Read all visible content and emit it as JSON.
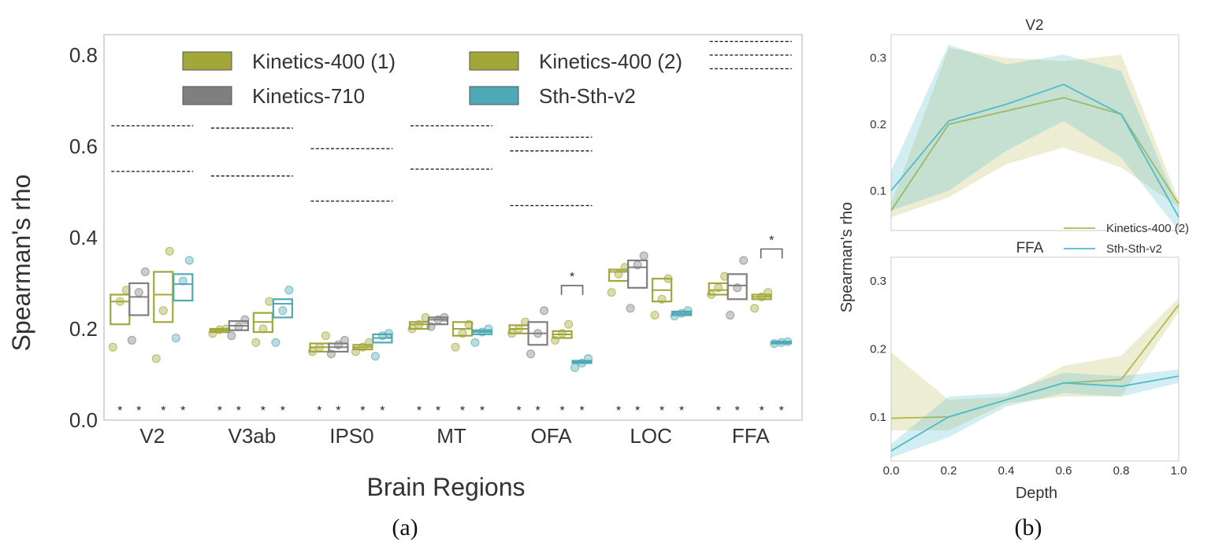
{
  "figure_a": {
    "caption": "(a)",
    "chart_data": {
      "type": "box",
      "xlabel": "Brain Regions",
      "ylabel": "Spearman's rho",
      "ylim": [
        0.0,
        0.84
      ],
      "yticks": [
        "0.0",
        "0.2",
        "0.4",
        "0.6",
        "0.8"
      ],
      "categories": [
        "V2",
        "V3ab",
        "IPS0",
        "MT",
        "OFA",
        "LOC",
        "FFA"
      ],
      "legend_placement": "top",
      "series": [
        {
          "name": "Kinetics-400 (1)",
          "color": "#a3a73a",
          "boxes": [
            {
              "q1": 0.21,
              "median": 0.26,
              "q3": 0.275,
              "points": [
                0.16,
                0.26,
                0.285
              ]
            },
            {
              "q1": 0.193,
              "median": 0.197,
              "q3": 0.2,
              "points": [
                0.19,
                0.198,
                0.2
              ]
            },
            {
              "q1": 0.15,
              "median": 0.16,
              "q3": 0.168,
              "points": [
                0.15,
                0.16,
                0.185
              ]
            },
            {
              "q1": 0.2,
              "median": 0.21,
              "q3": 0.215,
              "points": [
                0.2,
                0.21,
                0.225
              ]
            },
            {
              "q1": 0.19,
              "median": 0.2,
              "q3": 0.208,
              "points": [
                0.19,
                0.2,
                0.215
              ]
            },
            {
              "q1": 0.305,
              "median": 0.325,
              "q3": 0.33,
              "points": [
                0.28,
                0.32,
                0.335
              ]
            },
            {
              "q1": 0.275,
              "median": 0.285,
              "q3": 0.3,
              "points": [
                0.275,
                0.29,
                0.315
              ]
            }
          ]
        },
        {
          "name": "Kinetics-710",
          "color": "#7f7f7f",
          "boxes": [
            {
              "q1": 0.23,
              "median": 0.27,
              "q3": 0.3,
              "points": [
                0.175,
                0.28,
                0.325
              ]
            },
            {
              "q1": 0.197,
              "median": 0.207,
              "q3": 0.217,
              "points": [
                0.185,
                0.205,
                0.22
              ]
            },
            {
              "q1": 0.15,
              "median": 0.16,
              "q3": 0.168,
              "points": [
                0.145,
                0.165,
                0.175
              ]
            },
            {
              "q1": 0.21,
              "median": 0.22,
              "q3": 0.225,
              "points": [
                0.205,
                0.22,
                0.225
              ]
            },
            {
              "q1": 0.165,
              "median": 0.19,
              "q3": 0.215,
              "points": [
                0.145,
                0.19,
                0.24
              ]
            },
            {
              "q1": 0.29,
              "median": 0.335,
              "q3": 0.35,
              "points": [
                0.245,
                0.34,
                0.36
              ]
            },
            {
              "q1": 0.265,
              "median": 0.295,
              "q3": 0.32,
              "points": [
                0.23,
                0.29,
                0.35
              ]
            }
          ]
        },
        {
          "name": "Kinetics-400 (2)",
          "color": "#a3a73a",
          "boxes": [
            {
              "q1": 0.215,
              "median": 0.275,
              "q3": 0.325,
              "points": [
                0.135,
                0.24,
                0.37
              ]
            },
            {
              "q1": 0.193,
              "median": 0.215,
              "q3": 0.235,
              "points": [
                0.17,
                0.2,
                0.26
              ]
            },
            {
              "q1": 0.155,
              "median": 0.16,
              "q3": 0.165,
              "points": [
                0.15,
                0.16,
                0.17
              ]
            },
            {
              "q1": 0.185,
              "median": 0.2,
              "q3": 0.215,
              "points": [
                0.16,
                0.19,
                0.21
              ]
            },
            {
              "q1": 0.18,
              "median": 0.188,
              "q3": 0.195,
              "points": [
                0.175,
                0.19,
                0.21
              ]
            },
            {
              "q1": 0.26,
              "median": 0.285,
              "q3": 0.31,
              "points": [
                0.23,
                0.265,
                0.31
              ]
            },
            {
              "q1": 0.265,
              "median": 0.27,
              "q3": 0.275,
              "points": [
                0.245,
                0.27,
                0.28
              ]
            }
          ]
        },
        {
          "name": "Sth-Sth-v2",
          "color": "#4fa8b5",
          "boxes": [
            {
              "q1": 0.262,
              "median": 0.298,
              "q3": 0.32,
              "points": [
                0.18,
                0.305,
                0.35
              ]
            },
            {
              "q1": 0.225,
              "median": 0.255,
              "q3": 0.265,
              "points": [
                0.17,
                0.24,
                0.285
              ]
            },
            {
              "q1": 0.17,
              "median": 0.18,
              "q3": 0.188,
              "points": [
                0.14,
                0.185,
                0.19
              ]
            },
            {
              "q1": 0.188,
              "median": 0.193,
              "q3": 0.197,
              "points": [
                0.17,
                0.193,
                0.2
              ]
            },
            {
              "q1": 0.125,
              "median": 0.127,
              "q3": 0.13,
              "points": [
                0.115,
                0.125,
                0.135
              ]
            },
            {
              "q1": 0.23,
              "median": 0.234,
              "q3": 0.238,
              "points": [
                0.228,
                0.234,
                0.24
              ]
            },
            {
              "q1": 0.168,
              "median": 0.17,
              "q3": 0.172,
              "points": [
                0.168,
                0.17,
                0.172
              ]
            }
          ]
        }
      ],
      "dashed_levels": [
        [
          0.645,
          0.545
        ],
        [
          0.64,
          0.535
        ],
        [
          0.595,
          0.48
        ],
        [
          0.645,
          0.55
        ],
        [
          0.62,
          0.59,
          0.47
        ],
        [],
        [
          0.83,
          0.8,
          0.77
        ]
      ],
      "significance_bottom": "*",
      "significance_brackets": [
        {
          "category": "OFA",
          "y": 0.295,
          "label": "*"
        },
        {
          "category": "FFA",
          "y": 0.375,
          "label": "*"
        }
      ]
    }
  },
  "figure_b": {
    "caption": "(b)",
    "ylabel": "Spearman's rho",
    "legend": [
      "Kinetics-400 (2)",
      "Sth-Sth-v2"
    ],
    "chart_data": [
      {
        "type": "line",
        "title": "V2",
        "xlabel": "",
        "xlim": [
          0.0,
          1.0
        ],
        "ylim": [
          0.04,
          0.335
        ],
        "yticks": [
          "0.1",
          "0.2",
          "0.3"
        ],
        "x": [
          0.0,
          0.2,
          0.4,
          0.6,
          0.8,
          1.0
        ],
        "series": [
          {
            "name": "Kinetics-400 (2)",
            "color": "#b5b84a",
            "values": [
              0.07,
              0.2,
              0.22,
              0.24,
              0.215,
              0.08
            ],
            "lower": [
              0.06,
              0.09,
              0.14,
              0.165,
              0.135,
              0.075
            ],
            "upper": [
              0.08,
              0.315,
              0.3,
              0.295,
              0.305,
              0.085
            ]
          },
          {
            "name": "Sth-Sth-v2",
            "color": "#4fbccb",
            "values": [
              0.1,
              0.205,
              0.23,
              0.26,
              0.215,
              0.06
            ],
            "lower": [
              0.07,
              0.1,
              0.16,
              0.205,
              0.15,
              0.04
            ],
            "upper": [
              0.13,
              0.32,
              0.29,
              0.305,
              0.28,
              0.075
            ]
          }
        ]
      },
      {
        "type": "line",
        "title": "FFA",
        "xlabel": "Depth",
        "xlim": [
          0.0,
          1.0
        ],
        "ylim": [
          0.035,
          0.335
        ],
        "yticks": [
          "0.1",
          "0.2",
          "0.3"
        ],
        "xticks": [
          "0.0",
          "0.2",
          "0.4",
          "0.6",
          "0.8",
          "1.0"
        ],
        "x": [
          0.0,
          0.2,
          0.4,
          0.6,
          0.8,
          1.0
        ],
        "series": [
          {
            "name": "Kinetics-400 (2)",
            "color": "#b5b84a",
            "values": [
              0.098,
              0.1,
              0.125,
              0.15,
              0.155,
              0.265
            ],
            "lower": [
              0.08,
              0.08,
              0.12,
              0.13,
              0.13,
              0.255
            ],
            "upper": [
              0.195,
              0.125,
              0.13,
              0.175,
              0.19,
              0.275
            ]
          },
          {
            "name": "Sth-Sth-v2",
            "color": "#4fbccb",
            "values": [
              0.05,
              0.1,
              0.125,
              0.15,
              0.145,
              0.16
            ],
            "lower": [
              0.04,
              0.07,
              0.115,
              0.135,
              0.13,
              0.15
            ],
            "upper": [
              0.06,
              0.13,
              0.135,
              0.165,
              0.16,
              0.17
            ]
          }
        ]
      }
    ]
  }
}
